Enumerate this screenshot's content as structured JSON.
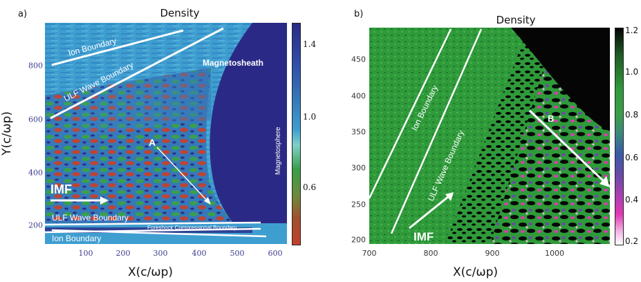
{
  "panel_a": {
    "label": "a)",
    "title": "Density",
    "xlabel": "X(c/ωp)",
    "ylabel": "Y(c/ωp)",
    "x_ticks": [
      "100",
      "200",
      "300",
      "400",
      "500",
      "600"
    ],
    "y_ticks": [
      "800",
      "600",
      "400",
      "200"
    ],
    "colorbar_ticks": [
      "1.4",
      "1.0",
      "0.6"
    ],
    "annotations": {
      "ion_boundary_top": "Ion Boundary",
      "ulf_wave_boundary_top": "ULF Wave Boundary",
      "magnetosheath": "Magnetosheath",
      "magnetosphere": "Magnetosphere",
      "point_a": "A",
      "imf": "IMF",
      "ulf_wave_boundary_bottom": "ULF Wave Boundary",
      "foreshock_compressional_boundary": "Foreshock Compressional Boundary",
      "ion_boundary_bottom": "Ion Boundary"
    }
  },
  "panel_b": {
    "label": "b)",
    "title": "Density",
    "xlabel": "X(c/ωp)",
    "x_ticks": [
      "700",
      "800",
      "900",
      "1000"
    ],
    "y_ticks": [
      "450",
      "400",
      "350",
      "300",
      "250",
      "200"
    ],
    "colorbar_ticks": [
      "1.2",
      "1.0",
      "0.8",
      "0.6",
      "0.4",
      "0.2"
    ],
    "annotations": {
      "ion_boundary": "Ion Boundary",
      "ulf_wave_boundary": "ULF Wave Boundary",
      "point_b": "B",
      "imf": "IMF"
    }
  },
  "colors": {
    "a_background": "#3f9ed0",
    "a_sheath": "#2a2a86",
    "a_red": "#c2402e",
    "a_green": "#3a9e48",
    "b_background": "#2f9a3a",
    "b_dark": "#050505",
    "b_magenta": "#e238b4",
    "b_purple": "#6a4aa8"
  }
}
